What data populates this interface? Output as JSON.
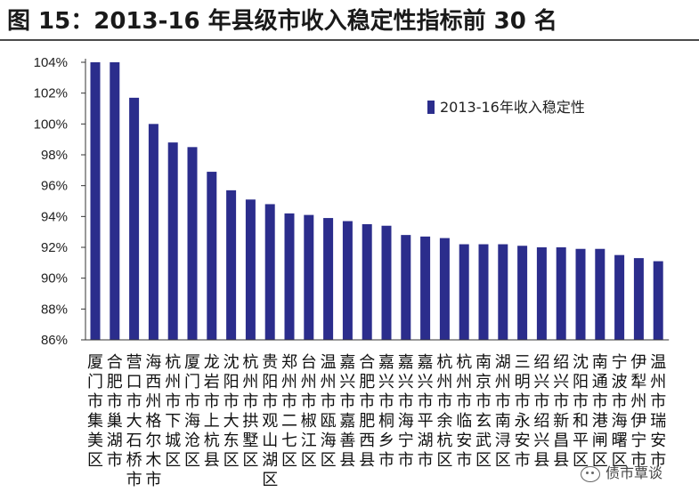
{
  "title": "图 15：2013-16 年县级市收入稳定性指标前 30 名",
  "watermark": "债市覃谈",
  "colors": {
    "bar": "#2b2d8c",
    "axis": "#333333",
    "text": "#222222"
  },
  "chart_data": {
    "type": "bar",
    "categories": [
      "厦门市集美区",
      "合肥市巢湖市",
      "营口市大石桥市",
      "海西州格尔木市",
      "杭州市下城区",
      "厦门市海沧区",
      "龙岩市上杭县",
      "沈阳市大东区",
      "杭州市拱墅区",
      "贵阳市观山湖区",
      "郑州市二七区",
      "台州市椒江区",
      "温州市瓯海区",
      "嘉兴市嘉善县",
      "合肥市肥西县",
      "嘉兴市桐乡市",
      "嘉兴市海宁市",
      "嘉兴市平湖市",
      "杭州市余杭区",
      "杭州市临安市",
      "南京市玄武区",
      "湖州市南浔区",
      "三明市永安市",
      "绍兴市绍兴县",
      "绍兴市新昌县",
      "沈阳市和平区",
      "南通市港闸区",
      "宁波市海曙区",
      "伊犁州伊宁市",
      "温州市瑞安市"
    ],
    "series": [
      {
        "name": "2013-16年收入稳定性",
        "values": [
          104.0,
          104.0,
          101.7,
          100.0,
          98.8,
          98.5,
          96.9,
          95.7,
          95.1,
          94.8,
          94.2,
          94.1,
          93.9,
          93.7,
          93.5,
          93.4,
          92.8,
          92.7,
          92.6,
          92.2,
          92.2,
          92.2,
          92.1,
          92.0,
          92.0,
          91.9,
          91.9,
          91.5,
          91.3,
          91.1
        ]
      }
    ],
    "yticks": [
      "86%",
      "88%",
      "90%",
      "92%",
      "94%",
      "96%",
      "98%",
      "100%",
      "102%",
      "104%"
    ],
    "ylim": [
      86,
      104
    ],
    "legend": "top-right",
    "grid": false
  }
}
